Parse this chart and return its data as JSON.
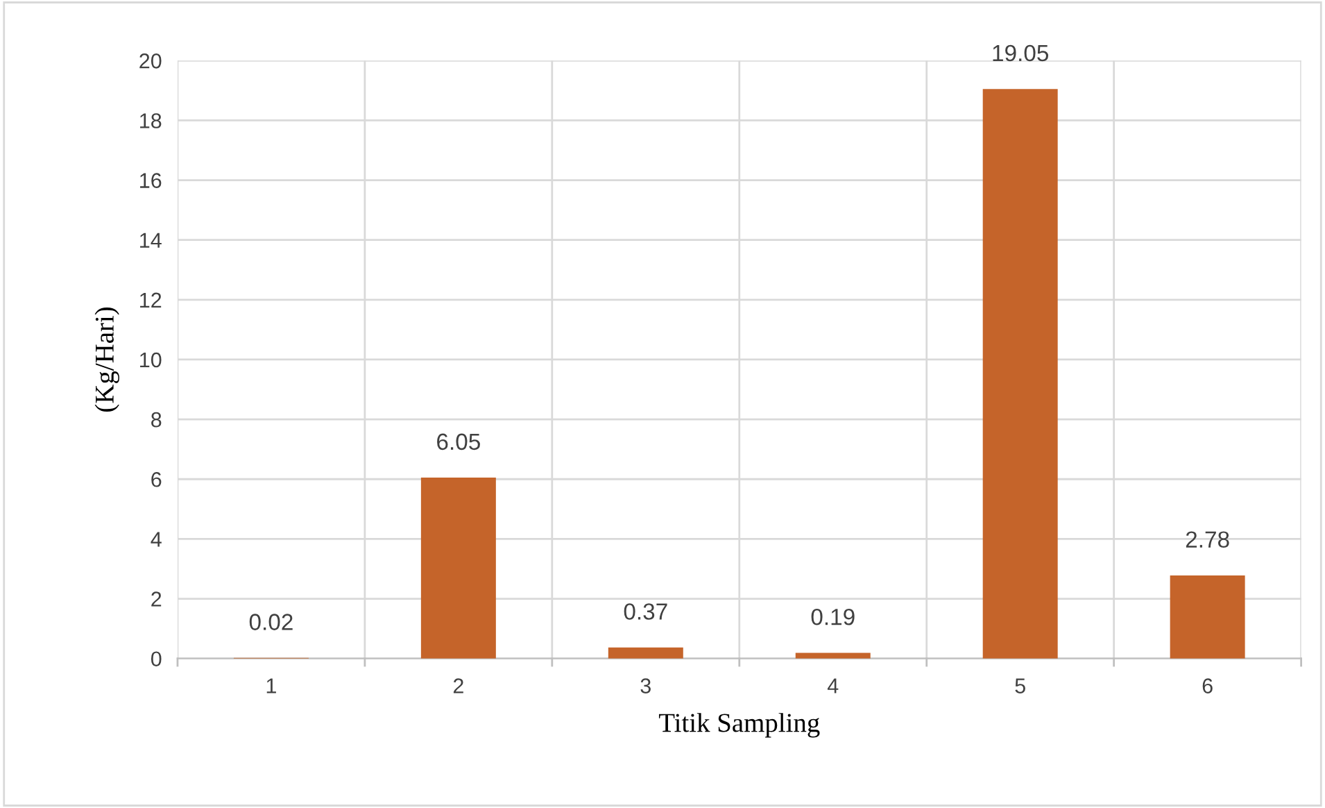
{
  "chart_data": {
    "type": "bar",
    "xlabel": "Titik Sampling",
    "ylabel": "(Kg/Hari)",
    "categories": [
      "1",
      "2",
      "3",
      "4",
      "5",
      "6"
    ],
    "values": [
      0.02,
      6.05,
      0.37,
      0.19,
      19.05,
      2.78
    ],
    "color": "#c5642a",
    "ylim": [
      0,
      20
    ],
    "yticks": [
      0,
      2,
      4,
      6,
      8,
      10,
      12,
      14,
      16,
      18,
      20
    ],
    "grid": true,
    "data_labels": true
  }
}
